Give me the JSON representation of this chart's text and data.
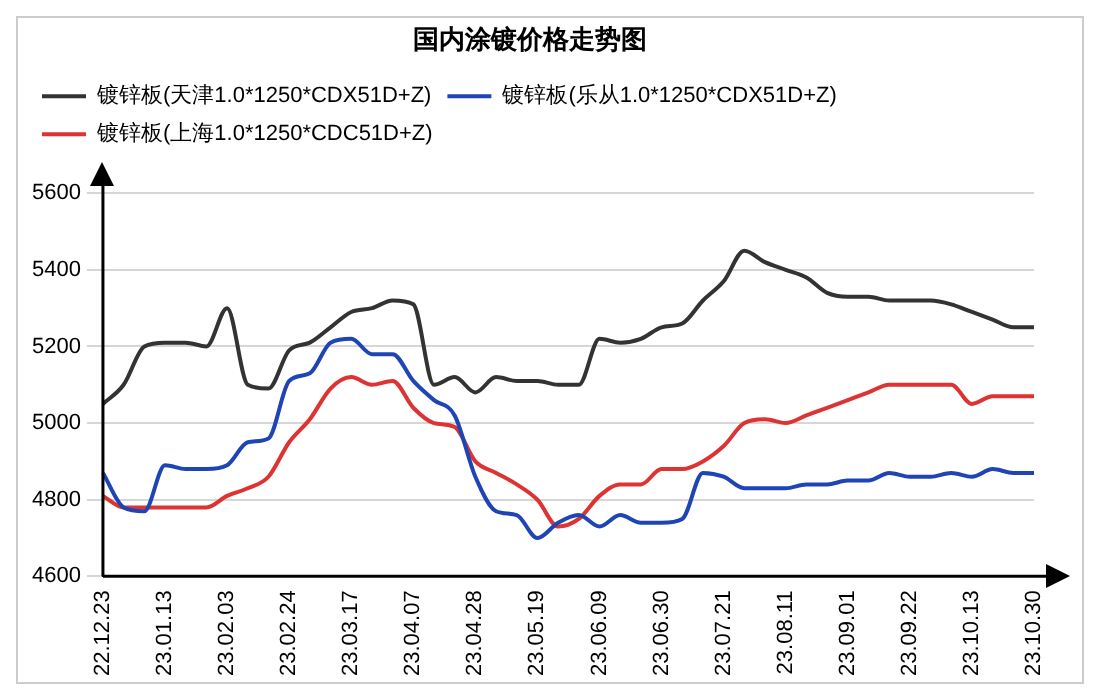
{
  "chart_data": {
    "type": "line",
    "title": "国内涂镀价格走势图",
    "categories": [
      "22.12.23",
      null,
      null,
      "23.01.13",
      null,
      null,
      "23.02.03",
      null,
      null,
      "23.02.24",
      null,
      null,
      "23.03.17",
      null,
      null,
      "23.04.07",
      null,
      null,
      "23.04.28",
      null,
      null,
      "23.05.19",
      null,
      null,
      "23.06.09",
      null,
      null,
      "23.06.30",
      null,
      null,
      "23.07.21",
      null,
      null,
      "23.08.11",
      null,
      null,
      "23.09.01",
      null,
      null,
      "23.09.22",
      null,
      null,
      "23.10.13",
      null,
      null,
      "23.10.30"
    ],
    "series": [
      {
        "name": "镀锌板(天津1.0*1250*CDX51D+Z)",
        "color": "#333333",
        "values": [
          5050,
          5100,
          5200,
          5210,
          5210,
          5200,
          5300,
          5100,
          5090,
          5190,
          5210,
          5250,
          5290,
          5300,
          5320,
          5310,
          5100,
          5120,
          5080,
          5120,
          5110,
          5110,
          5100,
          5100,
          5220,
          5210,
          5220,
          5250,
          5260,
          5320,
          5370,
          5450,
          5420,
          5400,
          5380,
          5340,
          5330,
          5330,
          5320,
          5320,
          5320,
          5310,
          5290,
          5270,
          5250,
          5250
        ]
      },
      {
        "name": "镀锌板(乐从1.0*1250*CDX51D+Z)",
        "color": "#1f45b5",
        "values": [
          4870,
          4780,
          4770,
          4890,
          4880,
          4880,
          4890,
          4950,
          4960,
          5110,
          5130,
          5210,
          5220,
          5180,
          5180,
          5110,
          5060,
          5020,
          4860,
          4770,
          4760,
          4700,
          4740,
          4760,
          4730,
          4760,
          4740,
          4740,
          4750,
          4870,
          4860,
          4830,
          4830,
          4830,
          4840,
          4840,
          4850,
          4850,
          4870,
          4860,
          4860,
          4870,
          4860,
          4880,
          4870,
          4870
        ]
      },
      {
        "name": "镀锌板(上海1.0*1250*CDC51D+Z)",
        "color": "#dd3333",
        "values": [
          4810,
          4780,
          4780,
          4780,
          4780,
          4780,
          4810,
          4830,
          4860,
          4950,
          5010,
          5090,
          5120,
          5100,
          5110,
          5040,
          5000,
          4990,
          4900,
          4870,
          4840,
          4800,
          4730,
          4750,
          4810,
          4840,
          4840,
          4880,
          4880,
          4900,
          4940,
          5000,
          5010,
          5000,
          5020,
          5040,
          5060,
          5080,
          5100,
          5100,
          5100,
          5100,
          5050,
          5070,
          5070,
          5070
        ]
      }
    ],
    "ylim": [
      4600,
      5600
    ],
    "yticks": [
      4600,
      4800,
      5000,
      5200,
      5400,
      5600
    ],
    "grid": "y",
    "legend": "top",
    "marker": "none",
    "line_style": "solid"
  }
}
